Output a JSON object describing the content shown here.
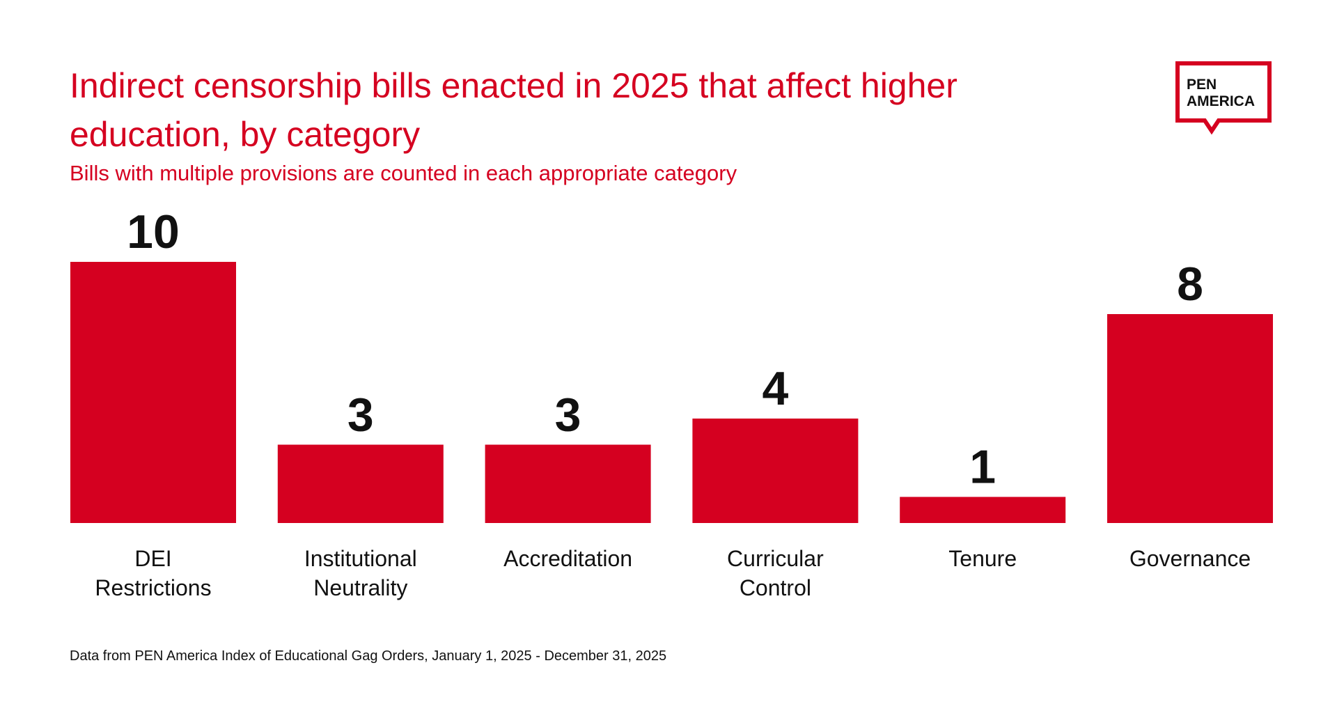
{
  "header": {
    "title": "Indirect censorship bills enacted in 2025 that affect higher education, by category",
    "subtitle": "Bills with multiple provisions are counted in each appropriate category"
  },
  "logo": {
    "line1": "PEN",
    "line2": "AMERICA"
  },
  "footer": {
    "source": "Data from PEN America Index of Educational Gag Orders, January 1, 2025 - December 31, 2025"
  },
  "colors": {
    "bar": "#d50020",
    "title": "#d50020",
    "text": "#111111"
  },
  "chart_data": {
    "type": "bar",
    "categories": [
      [
        "DEI",
        "Restrictions"
      ],
      [
        "Institutional",
        "Neutrality"
      ],
      [
        "Accreditation"
      ],
      [
        "Curricular",
        "Control"
      ],
      [
        "Tenure"
      ],
      [
        "Governance"
      ]
    ],
    "values": [
      10,
      3,
      3,
      4,
      1,
      8
    ],
    "ylim": [
      0,
      10
    ],
    "grid": false,
    "legend": "none"
  }
}
